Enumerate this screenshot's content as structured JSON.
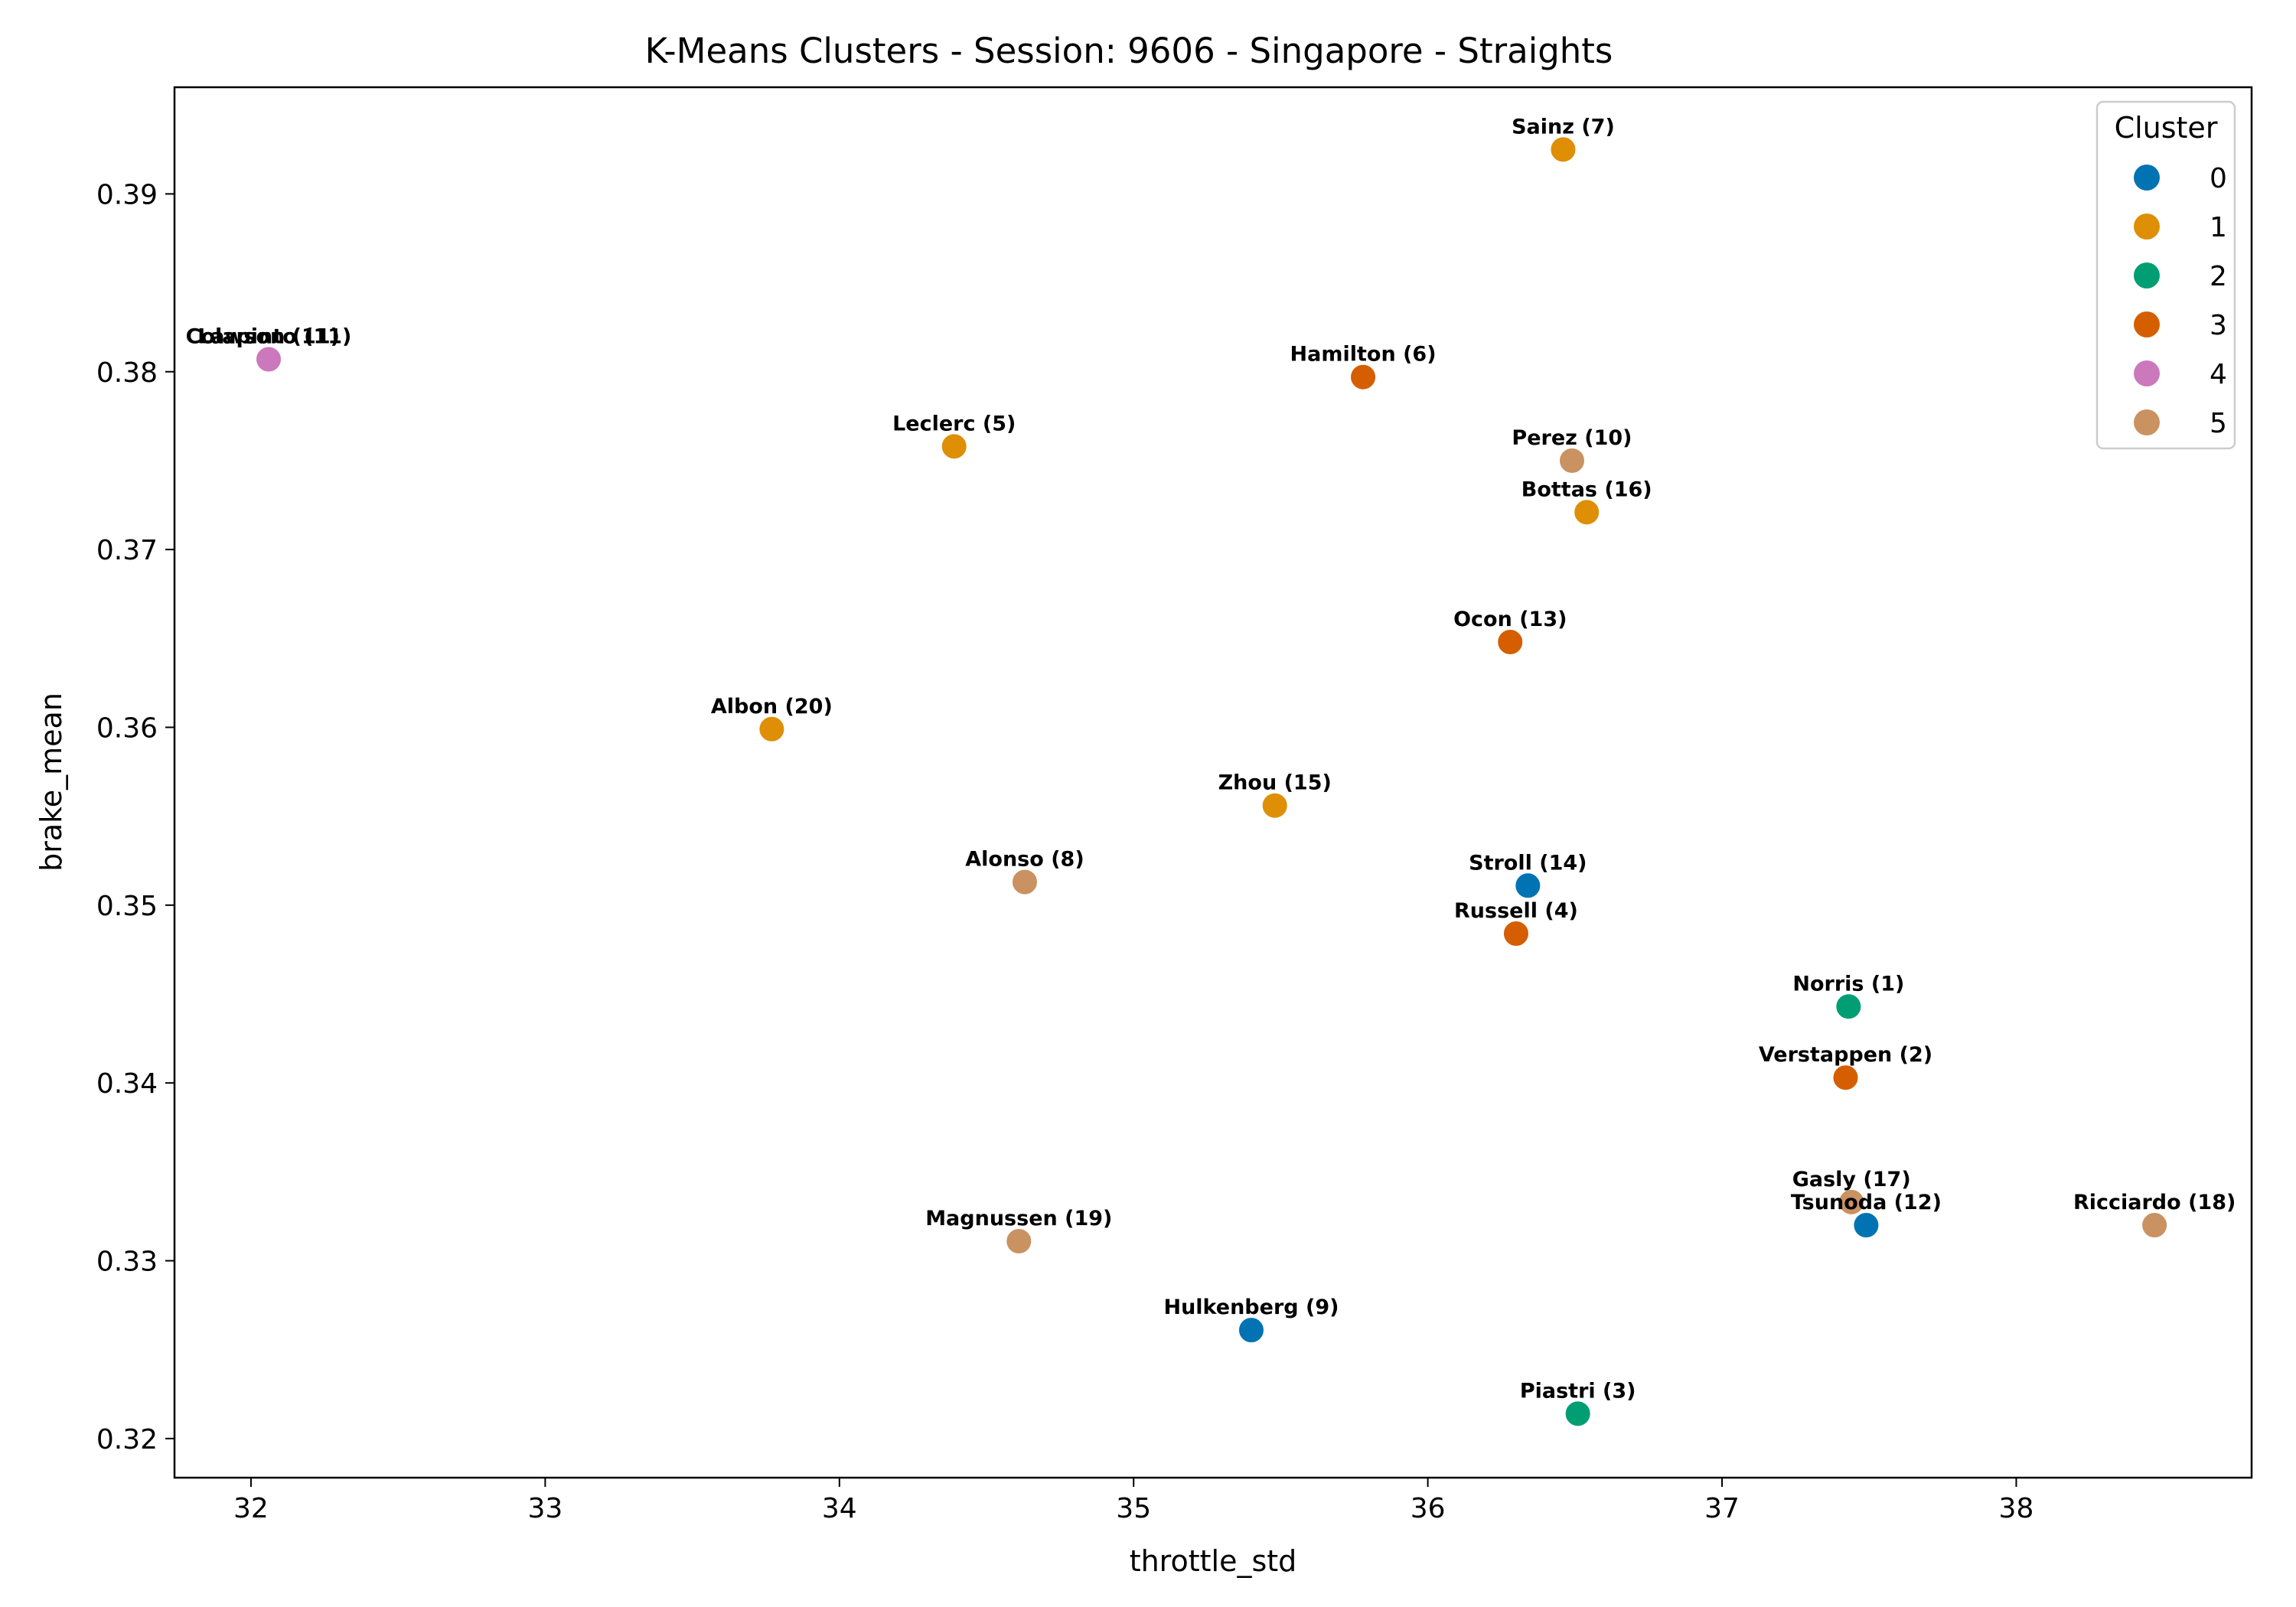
{
  "chart_data": {
    "type": "scatter",
    "title": "K-Means Clusters - Session: 9606 - Singapore - Straights",
    "xlabel": "throttle_std",
    "ylabel": "brake_mean",
    "xlim": [
      31.74,
      38.8
    ],
    "ylim": [
      0.3178,
      0.396
    ],
    "xticks": [
      32,
      33,
      34,
      35,
      36,
      37,
      38
    ],
    "xtick_labels": [
      "32",
      "33",
      "34",
      "35",
      "36",
      "37",
      "38"
    ],
    "yticks": [
      0.32,
      0.33,
      0.34,
      0.35,
      0.36,
      0.37,
      0.38,
      0.39
    ],
    "ytick_labels": [
      "0.32",
      "0.33",
      "0.34",
      "0.35",
      "0.36",
      "0.37",
      "0.38",
      "0.39"
    ],
    "grid": false,
    "legend": {
      "title": "Cluster",
      "placement": "top-right",
      "entries": [
        {
          "label": "0",
          "color": "#0173b2"
        },
        {
          "label": "1",
          "color": "#de8f05"
        },
        {
          "label": "2",
          "color": "#029e73"
        },
        {
          "label": "3",
          "color": "#d55e00"
        },
        {
          "label": "4",
          "color": "#cc78bc"
        },
        {
          "label": "5",
          "color": "#ca9161"
        }
      ]
    },
    "points": [
      {
        "label": "Sainz (7)",
        "x": 36.46,
        "y": 0.3925,
        "cluster": 1
      },
      {
        "label": "Colapinto (11)",
        "x": 32.06,
        "y": 0.3807,
        "cluster": 4
      },
      {
        "label": "Lawson (11)",
        "x": 32.06,
        "y": 0.3807,
        "cluster": 4
      },
      {
        "label": "Hamilton (6)",
        "x": 35.78,
        "y": 0.3797,
        "cluster": 3
      },
      {
        "label": "Leclerc (5)",
        "x": 34.39,
        "y": 0.3758,
        "cluster": 1
      },
      {
        "label": "Perez (10)",
        "x": 36.49,
        "y": 0.375,
        "cluster": 5
      },
      {
        "label": "Bottas (16)",
        "x": 36.54,
        "y": 0.3721,
        "cluster": 1
      },
      {
        "label": "Ocon (13)",
        "x": 36.28,
        "y": 0.3648,
        "cluster": 3
      },
      {
        "label": "Albon (20)",
        "x": 33.77,
        "y": 0.3599,
        "cluster": 1
      },
      {
        "label": "Zhou (15)",
        "x": 35.48,
        "y": 0.3556,
        "cluster": 1
      },
      {
        "label": "Alonso (8)",
        "x": 34.63,
        "y": 0.3513,
        "cluster": 5
      },
      {
        "label": "Stroll (14)",
        "x": 36.34,
        "y": 0.3511,
        "cluster": 0
      },
      {
        "label": "Russell (4)",
        "x": 36.3,
        "y": 0.3484,
        "cluster": 3
      },
      {
        "label": "Norris (1)",
        "x": 37.43,
        "y": 0.3443,
        "cluster": 2
      },
      {
        "label": "Verstappen (2)",
        "x": 37.42,
        "y": 0.3403,
        "cluster": 3
      },
      {
        "label": "Gasly (17)",
        "x": 37.44,
        "y": 0.3333,
        "cluster": 5
      },
      {
        "label": "Tsunoda (12)",
        "x": 37.49,
        "y": 0.332,
        "cluster": 0
      },
      {
        "label": "Ricciardo (18)",
        "x": 38.47,
        "y": 0.332,
        "cluster": 5
      },
      {
        "label": "Magnussen (19)",
        "x": 34.61,
        "y": 0.3311,
        "cluster": 5
      },
      {
        "label": "Hulkenberg (9)",
        "x": 35.4,
        "y": 0.3261,
        "cluster": 0
      },
      {
        "label": "Piastri (3)",
        "x": 36.51,
        "y": 0.3214,
        "cluster": 2
      }
    ]
  }
}
